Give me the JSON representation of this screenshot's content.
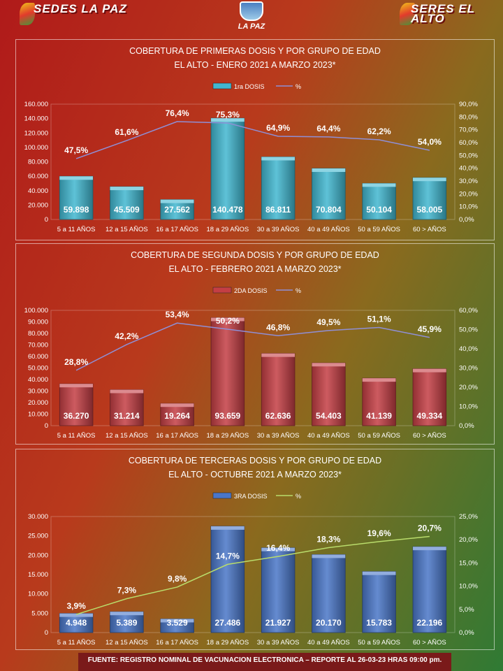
{
  "header": {
    "logo_left": "SEDES LA PAZ",
    "logo_center": "LA PAZ",
    "logo_right": "SERES EL ALTO"
  },
  "footer": "FUENTE: REGISTRO NOMINAL DE VACUNACION ELECTRONICA – REPORTE AL 26-03-23 HRAS 09:00 pm.",
  "colors": {
    "bar1": "#41b7d0",
    "bar2": "#c43e44",
    "bar3": "#4a76c8",
    "line": "#8f8fd6",
    "line3": "#b9dc6b"
  },
  "chart_data": [
    {
      "type": "bar",
      "title": "COBERTURA DE PRIMERAS DOSIS Y POR GRUPO DE EDAD",
      "subtitle": "EL ALTO - ENERO 2021 A MARZO 2023*",
      "categories": [
        "5 a 11 AÑOS",
        "12 a 15 AÑOS",
        "16 a 17 AÑOS",
        "18 a 29 AÑOS",
        "30 a 39 AÑOS",
        "40 a 49 AÑOS",
        "50 a 59 AÑOS",
        "60 > AÑOS"
      ],
      "series": [
        {
          "name": "1ra DOSIS",
          "type": "bar",
          "axis": "left",
          "values": [
            59898,
            45509,
            27562,
            140478,
            86811,
            70804,
            50104,
            58005
          ],
          "labels": [
            "59.898",
            "45.509",
            "27.562",
            "140.478",
            "86.811",
            "70.804",
            "50.104",
            "58.005"
          ]
        },
        {
          "name": "%",
          "type": "line",
          "axis": "right",
          "values": [
            47.5,
            61.6,
            76.4,
            75.3,
            64.9,
            64.4,
            62.2,
            54.0
          ],
          "labels": [
            "47,5%",
            "61,6%",
            "76,4%",
            "75,3%",
            "64,9%",
            "64,4%",
            "62,2%",
            "54,0%"
          ]
        }
      ],
      "ylim": [
        0,
        160000
      ],
      "yticks": [
        "0",
        "20.000",
        "40.000",
        "60.000",
        "80.000",
        "100.000",
        "120.000",
        "140.000",
        "160.000"
      ],
      "y2lim": [
        0,
        90
      ],
      "y2ticks": [
        "0,0%",
        "10,0%",
        "20,0%",
        "30,0%",
        "40,0%",
        "50,0%",
        "60,0%",
        "70,0%",
        "80,0%",
        "90,0%"
      ],
      "legend": "top-center"
    },
    {
      "type": "bar",
      "title": "COBERTURA DE SEGUNDA DOSIS Y POR GRUPO DE EDAD",
      "subtitle": "EL ALTO - FEBRERO 2021 A MARZO 2023*",
      "categories": [
        "5 a 11 AÑOS",
        "12 a 15 AÑOS",
        "16 a 17 AÑOS",
        "18 a 29 AÑOS",
        "30 a 39 AÑOS",
        "40 a 49 AÑOS",
        "50 a 59 AÑOS",
        "60 > AÑOS"
      ],
      "series": [
        {
          "name": "2DA DOSIS",
          "type": "bar",
          "axis": "left",
          "values": [
            36270,
            31214,
            19264,
            93659,
            62636,
            54403,
            41139,
            49334
          ],
          "labels": [
            "36.270",
            "31.214",
            "19.264",
            "93.659",
            "62.636",
            "54.403",
            "41.139",
            "49.334"
          ]
        },
        {
          "name": "%",
          "type": "line",
          "axis": "right",
          "values": [
            28.8,
            42.2,
            53.4,
            50.2,
            46.8,
            49.5,
            51.1,
            45.9
          ],
          "labels": [
            "28,8%",
            "42,2%",
            "53,4%",
            "50,2%",
            "46,8%",
            "49,5%",
            "51,1%",
            "45,9%"
          ]
        }
      ],
      "ylim": [
        0,
        100000
      ],
      "yticks": [
        "0",
        "10.000",
        "20.000",
        "30.000",
        "40.000",
        "50.000",
        "60.000",
        "70.000",
        "80.000",
        "90.000",
        "100.000"
      ],
      "y2lim": [
        0,
        60
      ],
      "y2ticks": [
        "0,0%",
        "10,0%",
        "20,0%",
        "30,0%",
        "40,0%",
        "50,0%",
        "60,0%"
      ],
      "legend": "top-center"
    },
    {
      "type": "bar",
      "title": "COBERTURA DE TERCERAS DOSIS Y POR GRUPO DE EDAD",
      "subtitle": "EL ALTO  - OCTUBRE 2021 A MARZO 2023*",
      "categories": [
        "5 a 11 AÑOS",
        "12 a 15 AÑOS",
        "16 a 17 AÑOS",
        "18 a 29 AÑOS",
        "30 a 39 AÑOS",
        "40 a 49 AÑOS",
        "50 a 59 AÑOS",
        "60 > AÑOS"
      ],
      "series": [
        {
          "name": "3RA DOSIS",
          "type": "bar",
          "axis": "left",
          "values": [
            4948,
            5389,
            3529,
            27486,
            21927,
            20170,
            15783,
            22196
          ],
          "labels": [
            "4.948",
            "5.389",
            "3.529",
            "27.486",
            "21.927",
            "20.170",
            "15.783",
            "22.196"
          ]
        },
        {
          "name": "%",
          "type": "line",
          "axis": "right",
          "values": [
            3.9,
            7.3,
            9.8,
            14.7,
            16.4,
            18.3,
            19.6,
            20.7
          ],
          "labels": [
            "3,9%",
            "7,3%",
            "9,8%",
            "14,7%",
            "16,4%",
            "18,3%",
            "19,6%",
            "20,7%"
          ]
        }
      ],
      "ylim": [
        0,
        30000
      ],
      "yticks": [
        "0",
        "5.000",
        "10.000",
        "15.000",
        "20.000",
        "25.000",
        "30.000"
      ],
      "y2lim": [
        0,
        25
      ],
      "y2ticks": [
        "0,0%",
        "5,0%",
        "10,0%",
        "15,0%",
        "20,0%",
        "25,0%"
      ],
      "legend": "top-center"
    }
  ]
}
